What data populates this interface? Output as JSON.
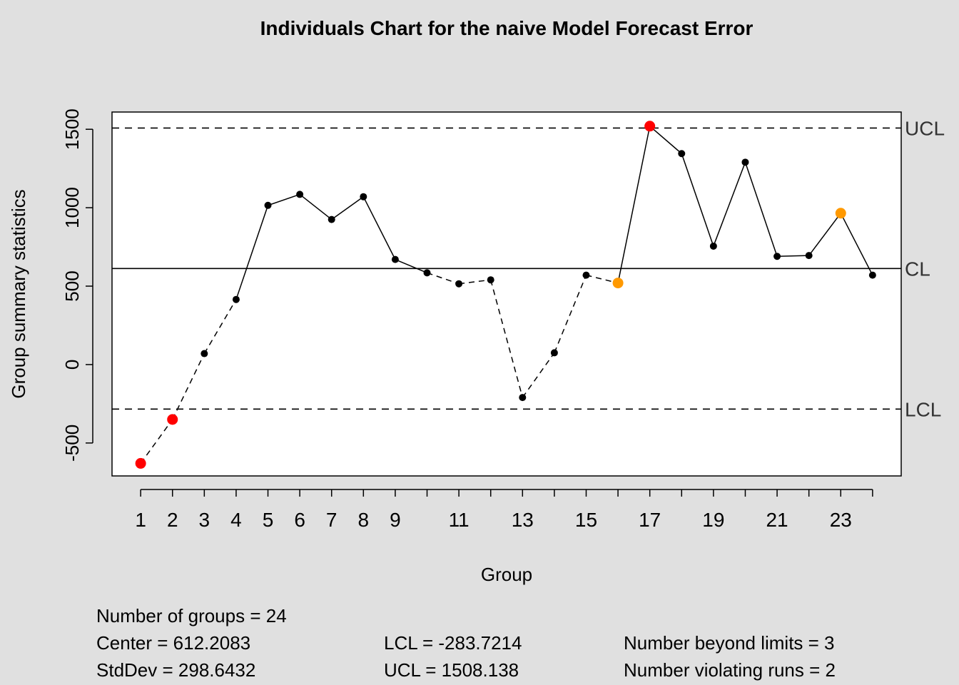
{
  "chart_data": {
    "type": "line",
    "title": "Individuals Chart for the naive Model Forecast Error",
    "xlabel": "Group",
    "ylabel": "Group summary statistics",
    "x": [
      1,
      2,
      3,
      4,
      5,
      6,
      7,
      8,
      9,
      10,
      11,
      12,
      13,
      14,
      15,
      16,
      17,
      18,
      19,
      20,
      21,
      22,
      23,
      24
    ],
    "values": [
      -630,
      -350,
      70,
      415,
      1015,
      1085,
      925,
      1070,
      670,
      585,
      515,
      540,
      -210,
      75,
      570,
      520,
      1520,
      1345,
      755,
      1290,
      690,
      695,
      965,
      570
    ],
    "point_status": [
      "beyond",
      "beyond",
      "normal",
      "normal",
      "normal",
      "normal",
      "normal",
      "normal",
      "normal",
      "normal",
      "normal",
      "normal",
      "normal",
      "normal",
      "normal",
      "run",
      "beyond",
      "normal",
      "normal",
      "normal",
      "normal",
      "normal",
      "run",
      "normal"
    ],
    "xlim": [
      0.1,
      24.9
    ],
    "ylim": [
      -710,
      1610
    ],
    "x_ticks": [
      1,
      2,
      3,
      4,
      5,
      6,
      7,
      8,
      9,
      10,
      11,
      12,
      13,
      14,
      15,
      16,
      17,
      18,
      19,
      20,
      21,
      22,
      23,
      24
    ],
    "x_tick_labels": [
      "1",
      "2",
      "3",
      "4",
      "5",
      "6",
      "7",
      "8",
      "9",
      "",
      "11",
      "",
      "13",
      "",
      "15",
      "",
      "17",
      "",
      "19",
      "",
      "21",
      "",
      "23",
      ""
    ],
    "y_ticks": [
      -500,
      0,
      500,
      1000,
      1500
    ],
    "y_tick_labels": [
      "-500",
      "0",
      "500",
      "1000",
      "1500"
    ],
    "limits": {
      "center": 612.2083,
      "lcl": -283.7214,
      "ucl": 1508.138,
      "labels": {
        "ucl": "UCL",
        "cl": "CL",
        "lcl": "LCL"
      }
    },
    "grid": false,
    "colors": {
      "normal": "#000000",
      "beyond": "#ff0000",
      "run": "#ff9900",
      "background": "#e0e0e0",
      "plot_background": "#ffffff"
    }
  },
  "stats": {
    "groups": "Number of groups = 24",
    "center": "Center = 612.2083",
    "stddev": "StdDev = 298.6432",
    "lcl": "LCL = -283.7214",
    "ucl": "UCL = 1508.138",
    "beyond": "Number beyond limits = 3",
    "runs": "Number violating runs = 2"
  }
}
